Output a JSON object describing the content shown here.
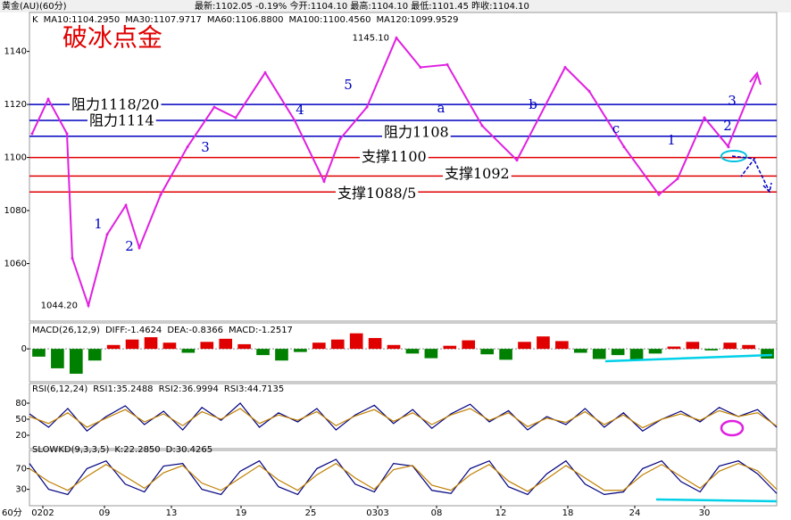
{
  "header": {
    "instrument": "黄金(AU)(60分)",
    "stats": "最新:1102.05 -0.19% 今开:1104.10 最高:1104.10 最低:1101.45 昨收:1104.10"
  },
  "chart_data": [
    {
      "type": "line",
      "title": "破冰点金",
      "legend": [
        "K",
        "MA10:1104.2950",
        "MA30:1107.9717",
        "MA60:1106.8800",
        "MA100:1100.4560",
        "MA120:1099.9529"
      ],
      "legend_colors": [
        "#000000",
        "#000000",
        "#c08000",
        "#000080",
        "#000000",
        "#c080ff"
      ],
      "x": [
        1,
        7,
        14,
        16,
        22,
        29,
        36,
        41,
        49,
        59,
        69,
        77,
        88,
        99,
        110,
        116,
        126,
        137,
        146,
        156,
        169,
        182,
        200,
        209,
        222,
        235,
        242,
        252,
        261
      ],
      "series": [
        {
          "name": "K",
          "color": "#e020e0",
          "values": [
            1109,
            1122,
            1109,
            1062,
            1044.2,
            1071,
            1082,
            1066,
            1086,
            1104,
            1119,
            1115,
            1132,
            1114,
            1091,
            1107,
            1119,
            1145.1,
            1134,
            1135,
            1112,
            1099,
            1134,
            1125,
            1104,
            1086,
            1092,
            1115,
            1104
          ]
        }
      ],
      "price_labels": [
        "1145.10",
        "1044.20"
      ],
      "levels": [
        {
          "value": 1120,
          "label": "阻力1118/20",
          "color": "#0000c0"
        },
        {
          "value": 1114,
          "label": "阻力1114",
          "color": "#0000c0"
        },
        {
          "value": 1108,
          "label": "阻力1108",
          "color": "#0000c0"
        },
        {
          "value": 1100,
          "label": "支撑1100",
          "color": "#e00000"
        },
        {
          "value": 1093,
          "label": "支撑1092",
          "color": "#e00000"
        },
        {
          "value": 1087,
          "label": "支撑1088/5",
          "color": "#e00000"
        }
      ],
      "annotations": [
        "1",
        "2",
        "3",
        "4",
        "5",
        "a",
        "b",
        "c",
        "1",
        "2",
        "3"
      ],
      "xlim": [
        0,
        279
      ],
      "ylim": [
        1039,
        1154
      ],
      "yticks": [
        1060,
        1080,
        1100,
        1120,
        1140
      ],
      "xticks": [
        {
          "value": 5,
          "label": "0202"
        },
        {
          "value": 28,
          "label": "09"
        },
        {
          "value": 53,
          "label": "13"
        },
        {
          "value": 79,
          "label": "19"
        },
        {
          "value": 105,
          "label": "25"
        },
        {
          "value": 130,
          "label": "0303"
        },
        {
          "value": 152,
          "label": "08"
        },
        {
          "value": 176,
          "label": "12"
        },
        {
          "value": 201,
          "label": "18"
        },
        {
          "value": 226,
          "label": "24"
        },
        {
          "value": 252,
          "label": "30"
        }
      ],
      "xaxis_label": "60分"
    },
    {
      "type": "histogram-bars",
      "legend": [
        "MACD(26,12,9)",
        "DIFF:-1.4624",
        "DEA:-0.8366",
        "MACD:-1.2517"
      ],
      "legend_colors": [
        "#000000",
        "#000000",
        "#c08000",
        "#000080"
      ],
      "values": [
        -1,
        -2.5,
        -3.2,
        -1.5,
        0.5,
        1.2,
        1.5,
        0.8,
        -0.5,
        0.9,
        1.3,
        0.6,
        -0.8,
        -1.5,
        -0.4,
        0.8,
        1.2,
        2.0,
        1.4,
        0.5,
        -0.6,
        -1.2,
        0.4,
        1.1,
        -0.7,
        -1.4,
        0.9,
        1.6,
        1.0,
        -0.5,
        -1.3,
        -0.8,
        -1.5,
        -0.6,
        0.3,
        0.9,
        -0.2,
        0.8,
        0.5,
        -1.25
      ],
      "ylim": [
        -4,
        3
      ],
      "yticks": [
        0
      ]
    },
    {
      "type": "osc",
      "legend": [
        "RSI(6,12,24)",
        "RSI1:35.2488",
        "RSI2:36.9994",
        "RSI3:44.7135"
      ],
      "legend_colors": [
        "#000000",
        "#000080",
        "#c08000",
        "#800080"
      ],
      "series": [
        {
          "name": "RSI1",
          "color": "#000080",
          "values": [
            60,
            35,
            70,
            28,
            55,
            75,
            40,
            65,
            30,
            72,
            48,
            80,
            35,
            62,
            45,
            70,
            30,
            58,
            76,
            42,
            68,
            33,
            60,
            78,
            45,
            66,
            30,
            55,
            40,
            70,
            35,
            62,
            28,
            50,
            65,
            45,
            72,
            55,
            68,
            35
          ]
        },
        {
          "name": "RSI2",
          "color": "#c08000",
          "values": [
            55,
            42,
            62,
            35,
            52,
            68,
            45,
            60,
            38,
            64,
            50,
            70,
            42,
            58,
            48,
            64,
            38,
            56,
            68,
            46,
            62,
            40,
            58,
            70,
            48,
            62,
            36,
            52,
            44,
            64,
            40,
            58,
            34,
            50,
            60,
            48,
            66,
            55,
            62,
            37
          ]
        }
      ],
      "ylim": [
        0,
        100
      ],
      "yticks": [
        20,
        50,
        80
      ]
    },
    {
      "type": "osc",
      "legend": [
        "SLOWKD(9,3,3,5)",
        "K:22.2850",
        "D:30.4265"
      ],
      "legend_colors": [
        "#000000",
        "#000080",
        "#c08000"
      ],
      "series": [
        {
          "name": "K",
          "color": "#000080",
          "values": [
            80,
            30,
            20,
            70,
            85,
            40,
            25,
            75,
            80,
            30,
            20,
            65,
            85,
            35,
            20,
            70,
            88,
            40,
            25,
            80,
            75,
            28,
            22,
            70,
            85,
            35,
            20,
            60,
            85,
            40,
            20,
            25,
            70,
            85,
            45,
            25,
            75,
            85,
            60,
            22
          ]
        },
        {
          "name": "D",
          "color": "#c08000",
          "values": [
            70,
            45,
            28,
            55,
            78,
            55,
            32,
            62,
            76,
            42,
            28,
            52,
            76,
            48,
            28,
            58,
            80,
            52,
            30,
            68,
            76,
            38,
            28,
            58,
            78,
            46,
            26,
            50,
            76,
            52,
            28,
            28,
            58,
            78,
            55,
            32,
            65,
            80,
            66,
            30
          ]
        }
      ],
      "ylim": [
        0,
        100
      ],
      "yticks": [
        30,
        70
      ]
    }
  ]
}
